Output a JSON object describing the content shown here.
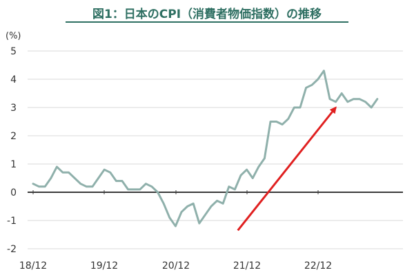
{
  "title": "図1：日本のCPI（消費者物価指数）の推移",
  "chart_data": {
    "type": "line",
    "title": "図1：日本のCPI（消費者物価指数）の推移",
    "ylabel": "(%)",
    "xlabel": "",
    "ylim": [
      -2,
      5
    ],
    "y_ticks": [
      5,
      4,
      3,
      2,
      1,
      0,
      -1,
      -2
    ],
    "x_tick_labels": [
      "18/12",
      "19/12",
      "20/12",
      "21/12",
      "22/12"
    ],
    "grid": "horizontal",
    "series": [
      {
        "color": "#8fb0ab",
        "values": [
          0.3,
          0.2,
          0.2,
          0.5,
          0.9,
          0.7,
          0.7,
          0.5,
          0.3,
          0.2,
          0.2,
          0.5,
          0.8,
          0.7,
          0.4,
          0.4,
          0.1,
          0.1,
          0.1,
          0.3,
          0.2,
          0.0,
          -0.4,
          -0.9,
          -1.2,
          -0.7,
          -0.5,
          -0.4,
          -1.1,
          -0.8,
          -0.5,
          -0.3,
          -0.4,
          0.2,
          0.1,
          0.6,
          0.8,
          0.5,
          0.9,
          1.2,
          2.5,
          2.5,
          2.4,
          2.6,
          3.0,
          3.0,
          3.7,
          3.8,
          4.0,
          4.3,
          3.3,
          3.2,
          3.5,
          3.2,
          3.3,
          3.3,
          3.2,
          3.0,
          3.3
        ]
      }
    ],
    "annotations": [
      {
        "type": "arrow",
        "color": "#e02020",
        "from": {
          "x": 34.5,
          "y": -1.35
        },
        "to": {
          "x": 51,
          "y": 3.0
        }
      }
    ]
  }
}
